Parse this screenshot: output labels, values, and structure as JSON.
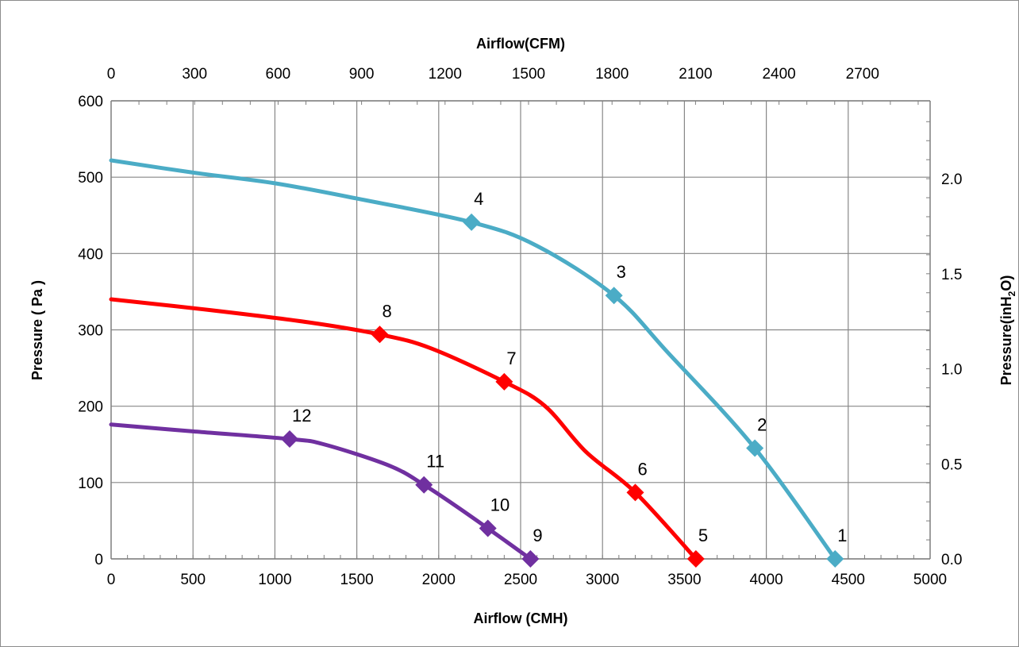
{
  "chart_data": {
    "type": "line",
    "title": "",
    "xlabel": "Airflow (CMH)",
    "x2label": "Airflow(CFM)",
    "ylabel": "Pressure ( Pa )",
    "y2label_main": "Pressure(inH",
    "y2label_sub": "2",
    "y2label_end": "O)",
    "xlim": [
      0,
      5000
    ],
    "ylim": [
      0,
      600
    ],
    "x_ticks": [
      0,
      500,
      1000,
      1500,
      2000,
      2500,
      3000,
      3500,
      4000,
      4500,
      5000
    ],
    "y_ticks": [
      0,
      100,
      200,
      300,
      400,
      500,
      600
    ],
    "x2_ticks": [
      "0",
      "300",
      "600",
      "900",
      "1200",
      "1500",
      "1800",
      "2100",
      "2400",
      "2700"
    ],
    "x2_tick_cmh": [
      0,
      509.7,
      1019.4,
      1529.1,
      2038.8,
      2548.5,
      3058.2,
      3567.9,
      4077.6,
      4587.3
    ],
    "y2_ticks": [
      "0.0",
      "0.5",
      "1.0",
      "1.5",
      "2.0"
    ],
    "y2_tick_pa": [
      0,
      124.5,
      249,
      373.5,
      498
    ],
    "grid": true,
    "legend": "none",
    "series": [
      {
        "color": "#4bacc6",
        "x": [
          0,
          500,
          1000,
          1500,
          2200,
          2600,
          3070,
          3400,
          3930,
          4420
        ],
        "y": [
          522,
          506,
          492,
          472,
          441,
          410,
          345,
          270,
          145,
          0
        ],
        "markers": [
          {
            "label": "1",
            "x": 4420,
            "y": 0
          },
          {
            "label": "2",
            "x": 3930,
            "y": 145
          },
          {
            "label": "3",
            "x": 3070,
            "y": 345
          },
          {
            "label": "4",
            "x": 2200,
            "y": 441
          }
        ]
      },
      {
        "color": "#ff0000",
        "x": [
          0,
          600,
          1200,
          1640,
          1950,
          2400,
          2650,
          2900,
          3200,
          3570
        ],
        "y": [
          340,
          326,
          310,
          294,
          276,
          232,
          200,
          140,
          87,
          0
        ],
        "markers": [
          {
            "label": "5",
            "x": 3570,
            "y": 0
          },
          {
            "label": "6",
            "x": 3200,
            "y": 87
          },
          {
            "label": "7",
            "x": 2400,
            "y": 232
          },
          {
            "label": "8",
            "x": 1640,
            "y": 294
          }
        ]
      },
      {
        "color": "#7030a0",
        "x": [
          0,
          500,
          1090,
          1300,
          1700,
          1910,
          2100,
          2300,
          2560
        ],
        "y": [
          176,
          167,
          157,
          150,
          122,
          97,
          70,
          40,
          0
        ],
        "markers": [
          {
            "label": "9",
            "x": 2560,
            "y": 0
          },
          {
            "label": "10",
            "x": 2300,
            "y": 40
          },
          {
            "label": "11",
            "x": 1910,
            "y": 97
          },
          {
            "label": "12",
            "x": 1090,
            "y": 157
          }
        ]
      }
    ]
  }
}
